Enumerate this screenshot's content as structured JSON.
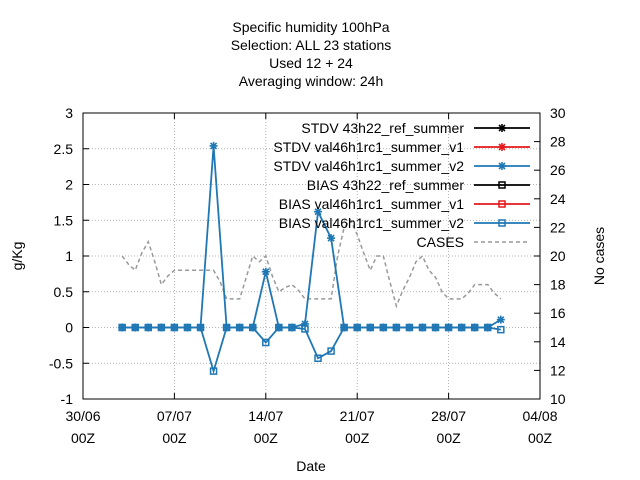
{
  "chart_data": {
    "type": "line",
    "title_lines": [
      "Specific humidity 100hPa",
      "Selection: ALL      23 stations",
      "Used  12  + 24",
      "Averaging window: 24h"
    ],
    "xlabel": "Date",
    "ylabel": "g/Kg",
    "y2label": "No cases",
    "x_days_range": [
      0,
      35
    ],
    "ylim": [
      -1,
      3
    ],
    "y2lim": [
      10,
      30
    ],
    "yticks": [
      "-1",
      "-0.5",
      "0",
      "0.5",
      "1",
      "1.5",
      "2",
      "2.5",
      "3"
    ],
    "y2ticks": [
      "10",
      "12",
      "14",
      "16",
      "18",
      "20",
      "22",
      "24",
      "26",
      "28",
      "30"
    ],
    "xticks": [
      {
        "day": 0,
        "l1": "30/06",
        "l2": "00Z"
      },
      {
        "day": 7,
        "l1": "07/07",
        "l2": "00Z"
      },
      {
        "day": 14,
        "l1": "14/07",
        "l2": "00Z"
      },
      {
        "day": 21,
        "l1": "21/07",
        "l2": "00Z"
      },
      {
        "day": 28,
        "l1": "28/07",
        "l2": "00Z"
      },
      {
        "day": 35,
        "l1": "04/08",
        "l2": "00Z"
      }
    ],
    "x": [
      3,
      4,
      5,
      6,
      7,
      8,
      9,
      10,
      11,
      12,
      13,
      14,
      15,
      16,
      17,
      18,
      19,
      20,
      21,
      22,
      23,
      24,
      25,
      26,
      27,
      28,
      29,
      30,
      31,
      32
    ],
    "legend": [
      {
        "label": "STDV 43h22_ref_summer",
        "color": "#000000",
        "marker": "star",
        "dash": false
      },
      {
        "label": "STDV val46h1rc1_summer_v1",
        "color": "#e41a1c",
        "marker": "star",
        "dash": false
      },
      {
        "label": "STDV val46h1rc1_summer_v2",
        "color": "#1f77b4",
        "marker": "star",
        "dash": false
      },
      {
        "label": "BIAS 43h22_ref_summer",
        "color": "#000000",
        "marker": "square",
        "dash": false
      },
      {
        "label": "BIAS val46h1rc1_summer_v1",
        "color": "#e41a1c",
        "marker": "square",
        "dash": false
      },
      {
        "label": "BIAS val46h1rc1_summer_v2",
        "color": "#1f77b4",
        "marker": "square",
        "dash": false
      },
      {
        "label": "CASES",
        "color": "#999999",
        "marker": "none",
        "dash": true
      }
    ],
    "series": [
      {
        "name": "STDV val46h1rc1_summer_v2",
        "axis": "y",
        "color": "#1f77b4",
        "marker": "star",
        "values": [
          0,
          0,
          0,
          0,
          0,
          0,
          0,
          2.54,
          0,
          0,
          0,
          0.78,
          0,
          0,
          0.05,
          1.62,
          1.25,
          0,
          0,
          0,
          0,
          0,
          0,
          0,
          0,
          0,
          0,
          0,
          0,
          0.11
        ]
      },
      {
        "name": "BIAS val46h1rc1_summer_v2",
        "axis": "y",
        "color": "#1f77b4",
        "marker": "square",
        "values": [
          0,
          0,
          0,
          0,
          0,
          0,
          0,
          -0.61,
          0,
          0,
          0,
          -0.21,
          0,
          0,
          -0.02,
          -0.43,
          -0.33,
          0,
          0,
          0,
          0,
          0,
          0,
          0,
          0,
          0,
          0,
          0,
          0,
          -0.03
        ]
      }
    ],
    "cases": {
      "name": "CASES",
      "axis": "y2",
      "color": "#999999",
      "x": [
        3,
        3.5,
        4,
        4.5,
        5,
        5.5,
        6,
        6.5,
        7,
        7.5,
        8,
        8.5,
        9,
        9.5,
        10,
        10.5,
        11,
        11.5,
        12,
        12.5,
        13,
        13.5,
        14,
        14.5,
        15,
        15.5,
        16,
        16.5,
        17,
        17.5,
        18,
        18.5,
        19,
        19.5,
        20,
        20.5,
        21,
        21.5,
        22,
        22.5,
        23,
        23.5,
        24,
        24.5,
        25,
        25.5,
        26,
        26.5,
        27,
        27.5,
        28,
        28.5,
        29,
        29.5,
        30,
        30.5,
        31,
        31.5,
        32
      ],
      "values": [
        20,
        19.4,
        19,
        20.2,
        21,
        19.6,
        18,
        18.6,
        19,
        19,
        19,
        19,
        19,
        19,
        19,
        18.2,
        17,
        17,
        17,
        18.5,
        20,
        19.6,
        20,
        18.6,
        17.5,
        17.8,
        18,
        17.6,
        17,
        17,
        17,
        17,
        17,
        20,
        22,
        22.5,
        21.5,
        20.2,
        19,
        20,
        20,
        18.2,
        16.5,
        17.6,
        18.5,
        19.6,
        20,
        19,
        18.5,
        17.5,
        17,
        17,
        17,
        17.4,
        18,
        18,
        18,
        17.4,
        17
      ]
    }
  }
}
